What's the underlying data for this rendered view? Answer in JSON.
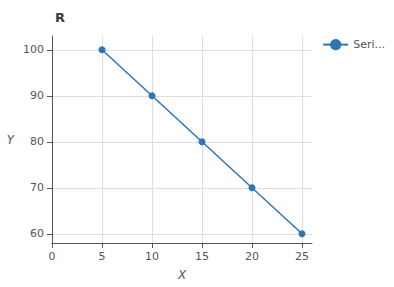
{
  "chart_data": {
    "type": "line",
    "title": "R",
    "xlabel": "X",
    "ylabel": "Y",
    "x": [
      5,
      10,
      15,
      20,
      25
    ],
    "series": [
      {
        "name": "Seri...",
        "color": "#2e75b6",
        "marker": "circle",
        "values": [
          100,
          90,
          80,
          70,
          60
        ]
      }
    ],
    "xlim": [
      0,
      26
    ],
    "xticks": [
      0,
      5,
      10,
      15,
      20,
      25
    ],
    "ylim": [
      58,
      103
    ],
    "yticks": [
      60,
      70,
      80,
      90,
      100
    ],
    "grid": true,
    "legend": "right"
  }
}
